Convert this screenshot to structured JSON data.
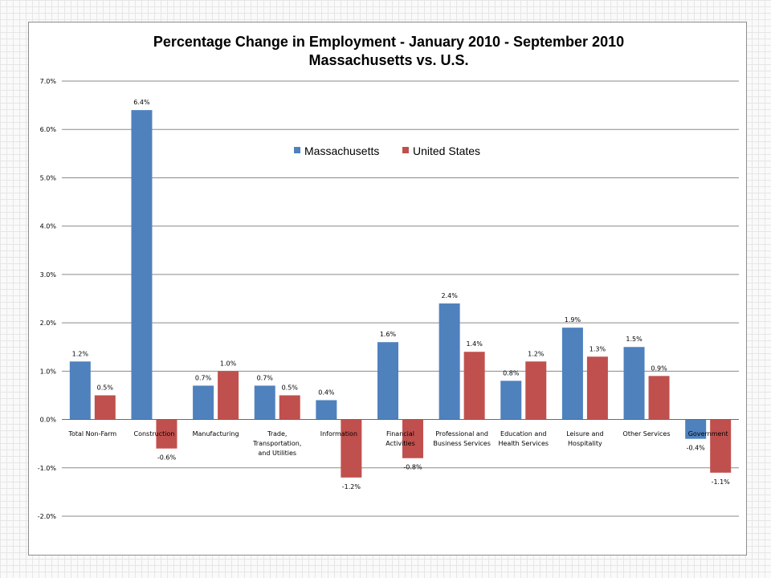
{
  "chart_data": {
    "type": "bar",
    "title": [
      "Percentage Change in Employment - January 2010 - September 2010",
      "Massachusetts vs. U.S."
    ],
    "categories": [
      [
        "Total Non-Farm"
      ],
      [
        "Construction"
      ],
      [
        "Manufacturing"
      ],
      [
        "Trade,",
        "Transportation,",
        "and Utilities"
      ],
      [
        "Information"
      ],
      [
        "Financial",
        "Activities"
      ],
      [
        "Professional and",
        "Business Services"
      ],
      [
        "Education and",
        "Health Services"
      ],
      [
        "Leisure and",
        "Hospitality"
      ],
      [
        "Other Services"
      ],
      [
        "Government"
      ]
    ],
    "series": [
      {
        "name": "Massachusetts",
        "color": "#4f81bd",
        "values": [
          1.2,
          6.4,
          0.7,
          0.7,
          0.4,
          1.6,
          2.4,
          0.8,
          1.9,
          1.5,
          -0.4
        ],
        "labels": [
          "1.2%",
          "6.4%",
          "0.7%",
          "0.7%",
          "0.4%",
          "1.6%",
          "2.4%",
          "0.8%",
          "1.9%",
          "1.5%",
          "-0.4%"
        ]
      },
      {
        "name": "United States",
        "color": "#c0504d",
        "values": [
          0.5,
          -0.6,
          1.0,
          0.5,
          -1.2,
          -0.8,
          1.4,
          1.2,
          1.3,
          0.9,
          -1.1
        ],
        "labels": [
          "0.5%",
          "-0.6%",
          "1.0%",
          "0.5%",
          "-1.2%",
          "-0.8%",
          "1.4%",
          "1.2%",
          "1.3%",
          "0.9%",
          "-1.1%"
        ]
      }
    ],
    "ylim": [
      -2.0,
      7.0
    ],
    "yticks": [
      7.0,
      6.0,
      5.0,
      4.0,
      3.0,
      2.0,
      1.0,
      0.0,
      -1.0,
      -2.0
    ],
    "ytick_labels": [
      "7.0%",
      "6.0%",
      "5.0%",
      "4.0%",
      "3.0%",
      "2.0%",
      "1.0%",
      "0.0%",
      "-1.0%",
      "-2.0%"
    ],
    "grid": true,
    "legend_position": "top-center"
  }
}
